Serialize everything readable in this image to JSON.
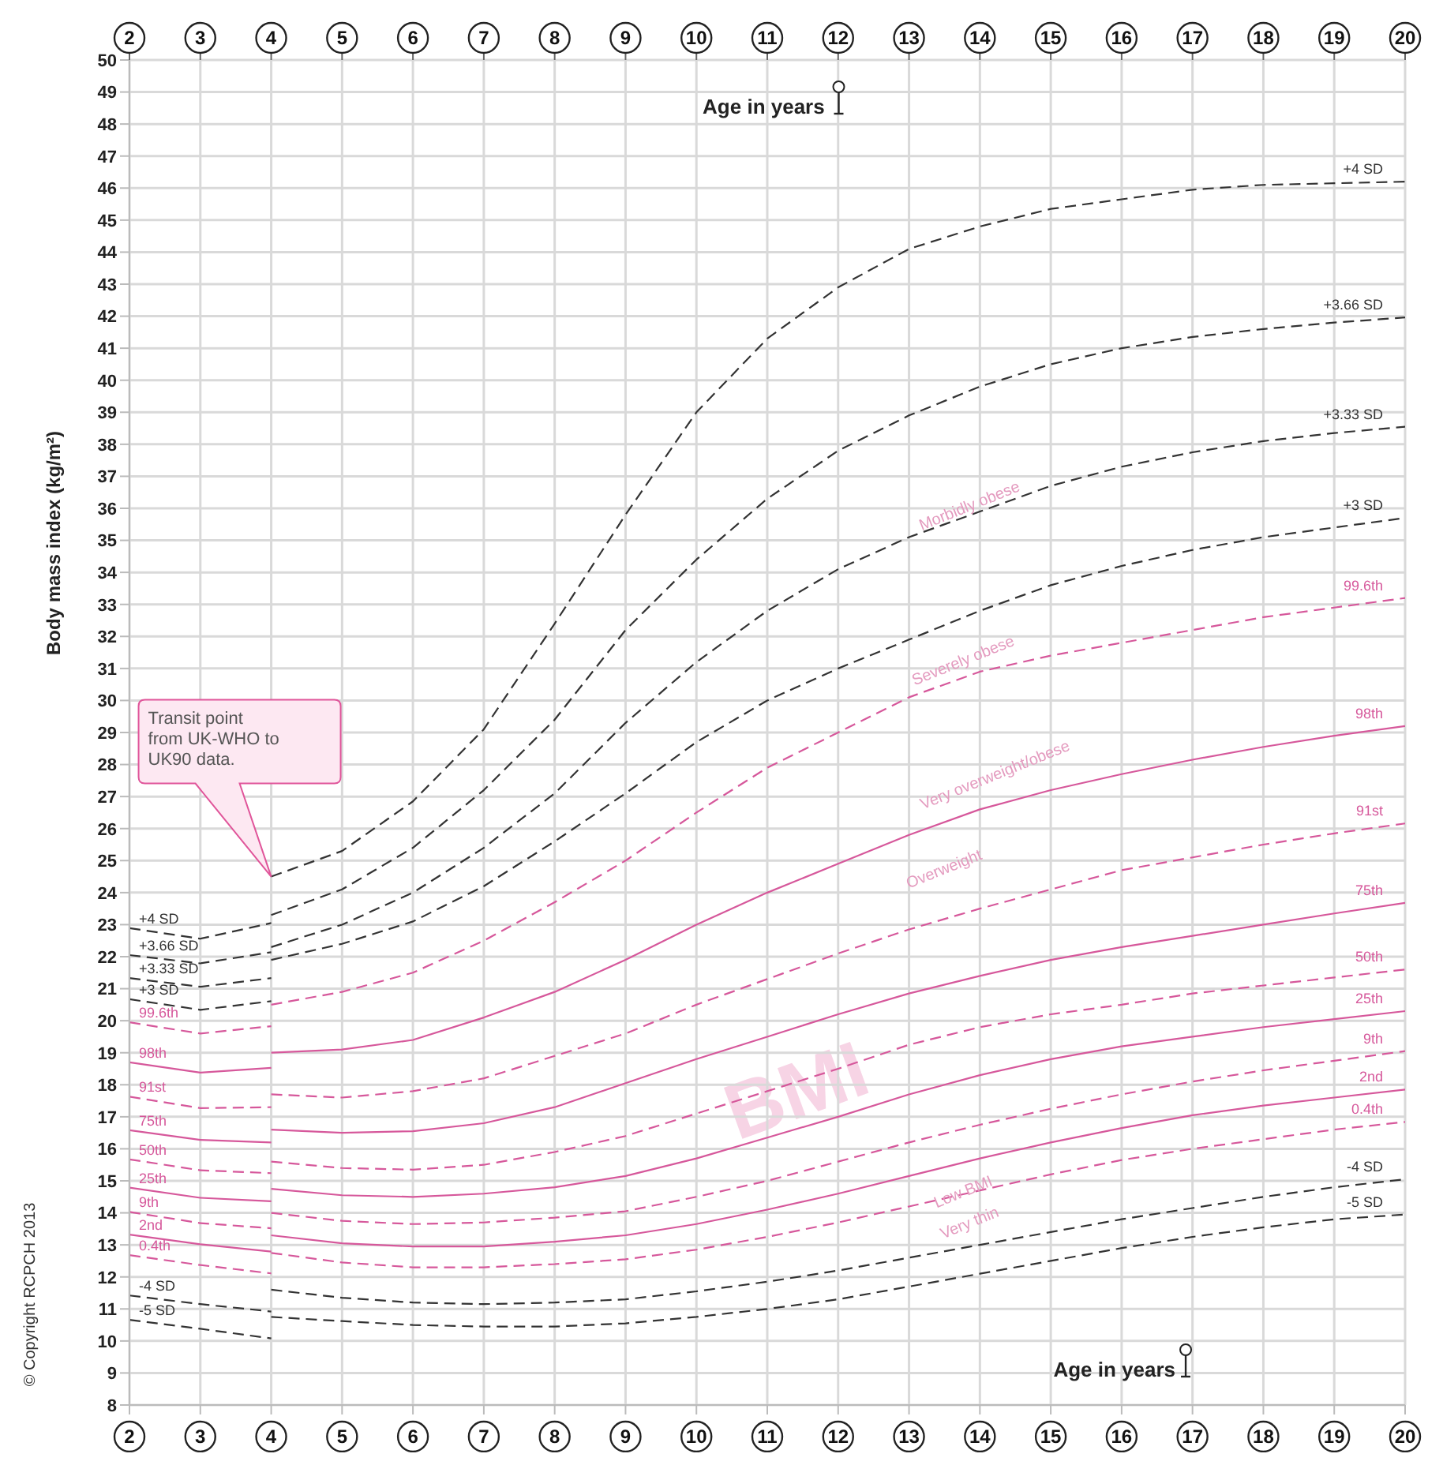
{
  "chart_data": {
    "type": "line",
    "xlabel": "Age in years",
    "x2label": "Age in years",
    "ylabel": "Body mass index (kg/m²)",
    "xlim": [
      2,
      20
    ],
    "xticks": [
      2,
      3,
      4,
      5,
      6,
      7,
      8,
      9,
      10,
      11,
      12,
      13,
      14,
      15,
      16,
      17,
      18,
      19,
      20
    ],
    "x2lim": [
      2,
      20
    ],
    "x2ticks": [
      2,
      3,
      4,
      5,
      6,
      7,
      8,
      9,
      10,
      11,
      12,
      13,
      14,
      15,
      16,
      17,
      18,
      19,
      20
    ],
    "ylim": [
      8,
      50
    ],
    "yticks": [
      8,
      9,
      10,
      11,
      12,
      13,
      14,
      15,
      16,
      17,
      18,
      19,
      20,
      21,
      22,
      23,
      24,
      25,
      26,
      27,
      28,
      29,
      30,
      31,
      32,
      33,
      34,
      35,
      36,
      37,
      38,
      39,
      40,
      41,
      42,
      43,
      44,
      45,
      46,
      47,
      48,
      49,
      50
    ],
    "grid": true,
    "marker": "none",
    "annotations": [
      "Transit point from UK-WHO to UK90 data.",
      "Morbidly obese",
      "Severely obese",
      "Very overweight/obese",
      "Overweight",
      "Low BMI",
      "Very thin",
      "BMI",
      "© Copyright RCPCH 2013"
    ],
    "series": [
      {
        "name": "+4 SD",
        "color": "#333333",
        "line_style": "dashed",
        "x": [
          2,
          3,
          4
        ],
        "values": [
          22.89,
          22.56,
          23.05
        ]
      },
      {
        "name": "+3.66 SD",
        "color": "#333333",
        "line_style": "dashed",
        "x": [
          2,
          3,
          4
        ],
        "values": [
          22.05,
          21.79,
          22.14
        ]
      },
      {
        "name": "+3.33 SD",
        "color": "#333333",
        "line_style": "dashed",
        "x": [
          2,
          3,
          4
        ],
        "values": [
          21.33,
          21.06,
          21.33
        ]
      },
      {
        "name": "+3 SD",
        "color": "#333333",
        "line_style": "dashed",
        "x": [
          2,
          3,
          4
        ],
        "values": [
          20.67,
          20.34,
          20.61
        ]
      },
      {
        "name": "99.6th",
        "color": "#d6589b",
        "line_style": "dashed",
        "x": [
          2,
          3,
          4
        ],
        "values": [
          19.95,
          19.6,
          19.83
        ]
      },
      {
        "name": "98th",
        "color": "#d6589b",
        "line_style": "solid",
        "x": [
          2,
          3,
          4
        ],
        "values": [
          18.7,
          18.38,
          18.53
        ]
      },
      {
        "name": "91st",
        "color": "#d6589b",
        "line_style": "dashed",
        "x": [
          2,
          3,
          4
        ],
        "values": [
          17.63,
          17.27,
          17.3
        ]
      },
      {
        "name": "75th",
        "color": "#d6589b",
        "line_style": "solid",
        "x": [
          2,
          3,
          4
        ],
        "values": [
          16.58,
          16.28,
          16.2
        ]
      },
      {
        "name": "50th",
        "color": "#d6589b",
        "line_style": "dashed",
        "x": [
          2,
          3,
          4
        ],
        "values": [
          15.67,
          15.33,
          15.24
        ]
      },
      {
        "name": "25th",
        "color": "#d6589b",
        "line_style": "solid",
        "x": [
          2,
          3,
          4
        ],
        "values": [
          14.79,
          14.47,
          14.36
        ]
      },
      {
        "name": "9th",
        "color": "#d6589b",
        "line_style": "dashed",
        "x": [
          2,
          3,
          4
        ],
        "values": [
          14.03,
          13.68,
          13.52
        ]
      },
      {
        "name": "2nd",
        "color": "#d6589b",
        "line_style": "solid",
        "x": [
          2,
          3,
          4
        ],
        "values": [
          13.32,
          13.02,
          12.79
        ]
      },
      {
        "name": "0.4th",
        "color": "#d6589b",
        "line_style": "dashed",
        "x": [
          2,
          3,
          4
        ],
        "values": [
          12.68,
          12.37,
          12.11
        ]
      },
      {
        "name": "-4 SD",
        "color": "#333333",
        "line_style": "dashed",
        "x": [
          2,
          3,
          4
        ],
        "values": [
          11.42,
          11.15,
          10.92
        ]
      },
      {
        "name": "-5 SD",
        "color": "#333333",
        "line_style": "dashed",
        "x": [
          2,
          3,
          4
        ],
        "values": [
          10.66,
          10.38,
          10.08
        ]
      },
      {
        "name": "+4 SD",
        "color": "#333333",
        "line_style": "dashed",
        "x": [
          4,
          5,
          6,
          7,
          8,
          9,
          10,
          11,
          12,
          13,
          14,
          15,
          16,
          17,
          18,
          19,
          20
        ],
        "values": [
          24.5,
          25.3,
          26.85,
          29.1,
          32.4,
          35.8,
          39.0,
          41.3,
          42.9,
          44.1,
          44.8,
          45.35,
          45.65,
          45.95,
          46.1,
          46.15,
          46.2
        ]
      },
      {
        "name": "+3.66 SD",
        "color": "#333333",
        "line_style": "dashed",
        "x": [
          4,
          5,
          6,
          7,
          8,
          9,
          10,
          11,
          12,
          13,
          14,
          15,
          16,
          17,
          18,
          19,
          20
        ],
        "values": [
          23.3,
          24.1,
          25.4,
          27.2,
          29.4,
          32.2,
          34.4,
          36.3,
          37.8,
          38.9,
          39.8,
          40.5,
          41.0,
          41.35,
          41.6,
          41.8,
          41.96
        ]
      },
      {
        "name": "+3.33 SD",
        "color": "#333333",
        "line_style": "dashed",
        "x": [
          4,
          5,
          6,
          7,
          8,
          9,
          10,
          11,
          12,
          13,
          14,
          15,
          16,
          17,
          18,
          19,
          20
        ],
        "values": [
          22.3,
          23.0,
          24.0,
          25.4,
          27.1,
          29.3,
          31.2,
          32.8,
          34.1,
          35.1,
          35.9,
          36.7,
          37.3,
          37.75,
          38.1,
          38.35,
          38.55
        ]
      },
      {
        "name": "+3 SD",
        "color": "#333333",
        "line_style": "dashed",
        "x": [
          4,
          5,
          6,
          7,
          8,
          9,
          10,
          11,
          12,
          13,
          14,
          15,
          16,
          17,
          18,
          19,
          20
        ],
        "values": [
          21.9,
          22.4,
          23.1,
          24.2,
          25.6,
          27.1,
          28.7,
          30.0,
          31.0,
          31.9,
          32.8,
          33.6,
          34.2,
          34.7,
          35.1,
          35.4,
          35.7
        ]
      },
      {
        "name": "99.6th",
        "color": "#d6589b",
        "line_style": "dashed",
        "x": [
          4,
          5,
          6,
          7,
          8,
          9,
          10,
          11,
          12,
          13,
          14,
          15,
          16,
          17,
          18,
          19,
          20
        ],
        "values": [
          20.5,
          20.9,
          21.5,
          22.5,
          23.7,
          25.0,
          26.5,
          27.9,
          29.0,
          30.1,
          30.9,
          31.4,
          31.8,
          32.2,
          32.6,
          32.9,
          33.2
        ]
      },
      {
        "name": "98th",
        "color": "#d6589b",
        "line_style": "solid",
        "x": [
          4,
          5,
          6,
          7,
          8,
          9,
          10,
          11,
          12,
          13,
          14,
          15,
          16,
          17,
          18,
          19,
          20
        ],
        "values": [
          19.0,
          19.1,
          19.4,
          20.1,
          20.9,
          21.9,
          23.0,
          24.0,
          24.9,
          25.8,
          26.6,
          27.2,
          27.7,
          28.15,
          28.55,
          28.9,
          29.2
        ]
      },
      {
        "name": "91st",
        "color": "#d6589b",
        "line_style": "dashed",
        "x": [
          4,
          5,
          6,
          7,
          8,
          9,
          10,
          11,
          12,
          13,
          14,
          15,
          16,
          17,
          18,
          19,
          20
        ],
        "values": [
          17.7,
          17.6,
          17.8,
          18.2,
          18.9,
          19.6,
          20.5,
          21.3,
          22.1,
          22.85,
          23.5,
          24.1,
          24.7,
          25.1,
          25.5,
          25.85,
          26.16
        ]
      },
      {
        "name": "75th",
        "color": "#d6589b",
        "line_style": "solid",
        "x": [
          4,
          5,
          6,
          7,
          8,
          9,
          10,
          11,
          12,
          13,
          14,
          15,
          16,
          17,
          18,
          19,
          20
        ],
        "values": [
          16.6,
          16.5,
          16.55,
          16.8,
          17.3,
          18.05,
          18.8,
          19.5,
          20.2,
          20.85,
          21.4,
          21.9,
          22.3,
          22.65,
          23.0,
          23.35,
          23.68
        ]
      },
      {
        "name": "50th",
        "color": "#d6589b",
        "line_style": "dashed",
        "x": [
          4,
          5,
          6,
          7,
          8,
          9,
          10,
          11,
          12,
          13,
          14,
          15,
          16,
          17,
          18,
          19,
          20
        ],
        "values": [
          15.6,
          15.4,
          15.35,
          15.5,
          15.9,
          16.4,
          17.1,
          17.8,
          18.5,
          19.25,
          19.8,
          20.2,
          20.5,
          20.85,
          21.1,
          21.35,
          21.6
        ]
      },
      {
        "name": "25th",
        "color": "#d6589b",
        "line_style": "solid",
        "x": [
          4,
          5,
          6,
          7,
          8,
          9,
          10,
          11,
          12,
          13,
          14,
          15,
          16,
          17,
          18,
          19,
          20
        ],
        "values": [
          14.75,
          14.55,
          14.5,
          14.6,
          14.8,
          15.15,
          15.7,
          16.35,
          17.0,
          17.7,
          18.3,
          18.8,
          19.2,
          19.5,
          19.8,
          20.05,
          20.3
        ]
      },
      {
        "name": "9th",
        "color": "#d6589b",
        "line_style": "dashed",
        "x": [
          4,
          5,
          6,
          7,
          8,
          9,
          10,
          11,
          12,
          13,
          14,
          15,
          16,
          17,
          18,
          19,
          20
        ],
        "values": [
          14.0,
          13.75,
          13.65,
          13.7,
          13.85,
          14.05,
          14.5,
          15.0,
          15.6,
          16.2,
          16.75,
          17.25,
          17.7,
          18.1,
          18.45,
          18.75,
          19.05
        ]
      },
      {
        "name": "2nd",
        "color": "#d6589b",
        "line_style": "solid",
        "x": [
          4,
          5,
          6,
          7,
          8,
          9,
          10,
          11,
          12,
          13,
          14,
          15,
          16,
          17,
          18,
          19,
          20
        ],
        "values": [
          13.3,
          13.05,
          12.95,
          12.95,
          13.1,
          13.3,
          13.65,
          14.1,
          14.6,
          15.15,
          15.7,
          16.2,
          16.65,
          17.05,
          17.35,
          17.6,
          17.85
        ]
      },
      {
        "name": "0.4th",
        "color": "#d6589b",
        "line_style": "dashed",
        "x": [
          4,
          5,
          6,
          7,
          8,
          9,
          10,
          11,
          12,
          13,
          14,
          15,
          16,
          17,
          18,
          19,
          20
        ],
        "values": [
          12.75,
          12.45,
          12.3,
          12.3,
          12.4,
          12.55,
          12.85,
          13.25,
          13.7,
          14.2,
          14.7,
          15.2,
          15.65,
          16.0,
          16.3,
          16.6,
          16.84
        ]
      },
      {
        "name": "-4 SD",
        "color": "#333333",
        "line_style": "dashed",
        "x": [
          4,
          5,
          6,
          7,
          8,
          9,
          10,
          11,
          12,
          13,
          14,
          15,
          16,
          17,
          18,
          19,
          20
        ],
        "values": [
          11.6,
          11.35,
          11.2,
          11.15,
          11.2,
          11.3,
          11.55,
          11.85,
          12.2,
          12.6,
          13.0,
          13.4,
          13.8,
          14.15,
          14.5,
          14.8,
          15.05
        ]
      },
      {
        "name": "-5 SD",
        "color": "#333333",
        "line_style": "dashed",
        "x": [
          4,
          5,
          6,
          7,
          8,
          9,
          10,
          11,
          12,
          13,
          14,
          15,
          16,
          17,
          18,
          19,
          20
        ],
        "values": [
          10.75,
          10.62,
          10.5,
          10.45,
          10.45,
          10.55,
          10.75,
          11.0,
          11.3,
          11.7,
          12.1,
          12.5,
          12.9,
          13.25,
          13.55,
          13.8,
          13.95
        ]
      }
    ]
  }
}
